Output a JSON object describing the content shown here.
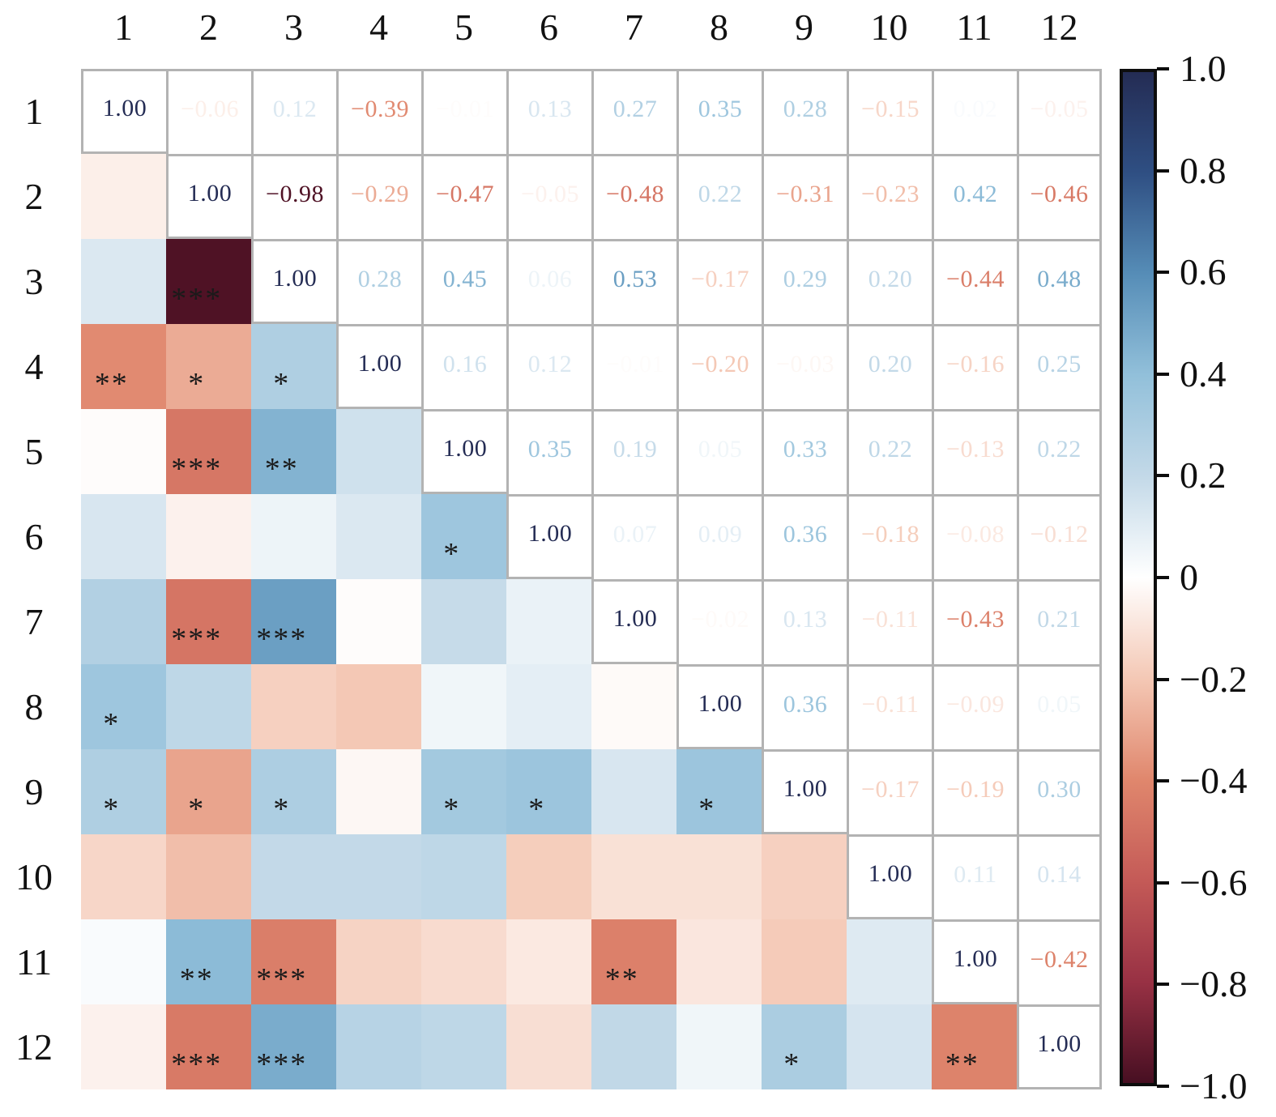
{
  "chart_data": {
    "type": "heatmap",
    "subtype": "correlation-matrix",
    "labels": [
      "1",
      "2",
      "3",
      "4",
      "5",
      "6",
      "7",
      "8",
      "9",
      "10",
      "11",
      "12"
    ],
    "diagonal_value": 1.0,
    "upper_triangle": [
      [
        -0.06,
        0.12,
        -0.39,
        -0.01,
        0.13,
        0.27,
        0.35,
        0.28,
        -0.15,
        0.02,
        -0.05
      ],
      [
        -0.98,
        -0.29,
        -0.47,
        -0.05,
        -0.48,
        0.22,
        -0.31,
        -0.23,
        0.42,
        -0.46
      ],
      [
        0.28,
        0.45,
        0.06,
        0.53,
        -0.17,
        0.29,
        0.2,
        -0.44,
        0.48
      ],
      [
        0.16,
        0.12,
        -0.01,
        -0.2,
        -0.03,
        0.2,
        -0.16,
        0.25
      ],
      [
        0.35,
        0.19,
        0.05,
        0.33,
        0.22,
        -0.13,
        0.22
      ],
      [
        0.07,
        0.09,
        0.36,
        -0.18,
        -0.08,
        -0.12
      ],
      [
        -0.02,
        0.13,
        -0.11,
        -0.43,
        0.21
      ],
      [
        0.36,
        -0.11,
        -0.09,
        0.05
      ],
      [
        -0.17,
        -0.19,
        0.3
      ],
      [
        0.11,
        0.14
      ],
      [
        -0.42
      ]
    ],
    "significance": [
      {
        "row": 3,
        "col": 2,
        "stars": "***"
      },
      {
        "row": 4,
        "col": 1,
        "stars": "**"
      },
      {
        "row": 4,
        "col": 2,
        "stars": "*"
      },
      {
        "row": 4,
        "col": 3,
        "stars": "*"
      },
      {
        "row": 5,
        "col": 2,
        "stars": "***"
      },
      {
        "row": 5,
        "col": 3,
        "stars": "**"
      },
      {
        "row": 6,
        "col": 5,
        "stars": "*"
      },
      {
        "row": 7,
        "col": 2,
        "stars": "***"
      },
      {
        "row": 7,
        "col": 3,
        "stars": "***"
      },
      {
        "row": 8,
        "col": 1,
        "stars": "*"
      },
      {
        "row": 9,
        "col": 1,
        "stars": "*"
      },
      {
        "row": 9,
        "col": 2,
        "stars": "*"
      },
      {
        "row": 9,
        "col": 3,
        "stars": "*"
      },
      {
        "row": 9,
        "col": 5,
        "stars": "*"
      },
      {
        "row": 9,
        "col": 6,
        "stars": "*"
      },
      {
        "row": 9,
        "col": 8,
        "stars": "*"
      },
      {
        "row": 11,
        "col": 2,
        "stars": "**"
      },
      {
        "row": 11,
        "col": 3,
        "stars": "***"
      },
      {
        "row": 11,
        "col": 7,
        "stars": "**"
      },
      {
        "row": 12,
        "col": 2,
        "stars": "***"
      },
      {
        "row": 12,
        "col": 3,
        "stars": "***"
      },
      {
        "row": 12,
        "col": 9,
        "stars": "*"
      },
      {
        "row": 12,
        "col": 11,
        "stars": "**"
      }
    ],
    "colorbar": {
      "min": -1.0,
      "max": 1.0,
      "tick_labels": [
        "1.0",
        "0.8",
        "0.6",
        "0.4",
        "0.2",
        "0",
        "−0.2",
        "−0.4",
        "−0.6",
        "−0.8",
        "−1.0"
      ],
      "position": "right"
    },
    "colormap_stops": [
      {
        "t": -1.0,
        "color": "#470f22"
      },
      {
        "t": -0.8,
        "color": "#983144"
      },
      {
        "t": -0.6,
        "color": "#c45a57"
      },
      {
        "t": -0.4,
        "color": "#e0876d"
      },
      {
        "t": -0.2,
        "color": "#f4c8b5"
      },
      {
        "t": 0.0,
        "color": "#ffffff"
      },
      {
        "t": 0.2,
        "color": "#c3d9e8"
      },
      {
        "t": 0.4,
        "color": "#92c0da"
      },
      {
        "t": 0.6,
        "color": "#568db7"
      },
      {
        "t": 0.8,
        "color": "#2f4f83"
      },
      {
        "t": 1.0,
        "color": "#242c54"
      }
    ],
    "style": {
      "grid_line_color": "#b3b3b3",
      "star_color": "#1a1a1a",
      "colorbar_border_color": "#0d0d0d",
      "background": "#ffffff"
    },
    "layout_notes": "upper triangle shows numeric correlations as colored text on white; lower triangle shows colored tiles with significance stars; diagonal is 1.00"
  }
}
